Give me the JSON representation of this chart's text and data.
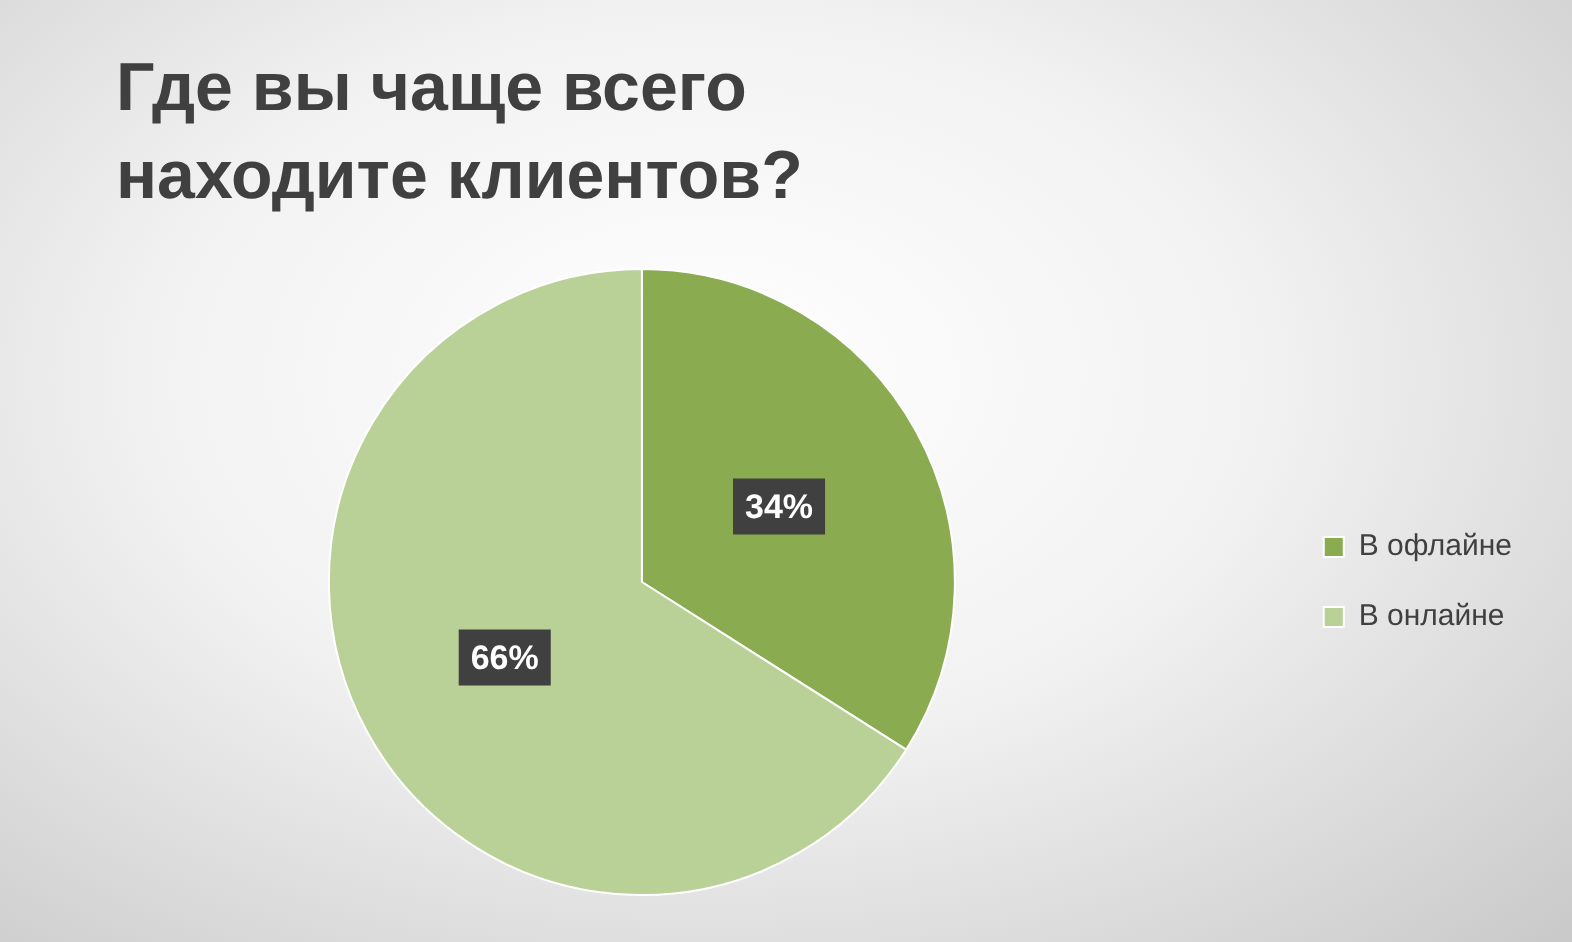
{
  "chart_data": {
    "type": "pie",
    "title": "Где вы чаще всего находите клиентов?",
    "categories": [
      "В офлайне",
      "В онлайне"
    ],
    "values": [
      34,
      66
    ],
    "colors": [
      "#8aab4f",
      "#b9d196"
    ],
    "value_labels": [
      "34%",
      "66%"
    ],
    "legend": "right"
  }
}
